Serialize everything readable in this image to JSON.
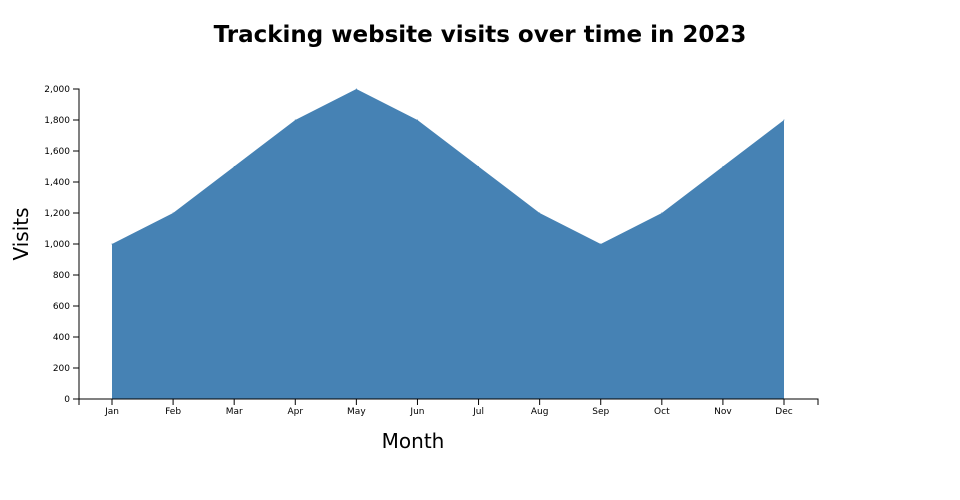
{
  "chart_data": {
    "type": "area",
    "title": "Tracking website visits over time in 2023",
    "xlabel": "Month",
    "ylabel": "Visits",
    "categories": [
      "Jan",
      "Feb",
      "Mar",
      "Apr",
      "May",
      "Jun",
      "Jul",
      "Aug",
      "Sep",
      "Oct",
      "Nov",
      "Dec"
    ],
    "series": [
      {
        "values": [
          1000,
          1200,
          1500,
          1800,
          2000,
          1800,
          1500,
          1200,
          1000,
          1200,
          1500,
          1800
        ]
      }
    ],
    "ylim": [
      0,
      2000
    ],
    "yticks": [
      0,
      200,
      400,
      600,
      800,
      1000,
      1200,
      1400,
      1600,
      1800,
      2000
    ],
    "grid": false,
    "legend": "none",
    "colors": {
      "area": "#4682b4"
    }
  }
}
